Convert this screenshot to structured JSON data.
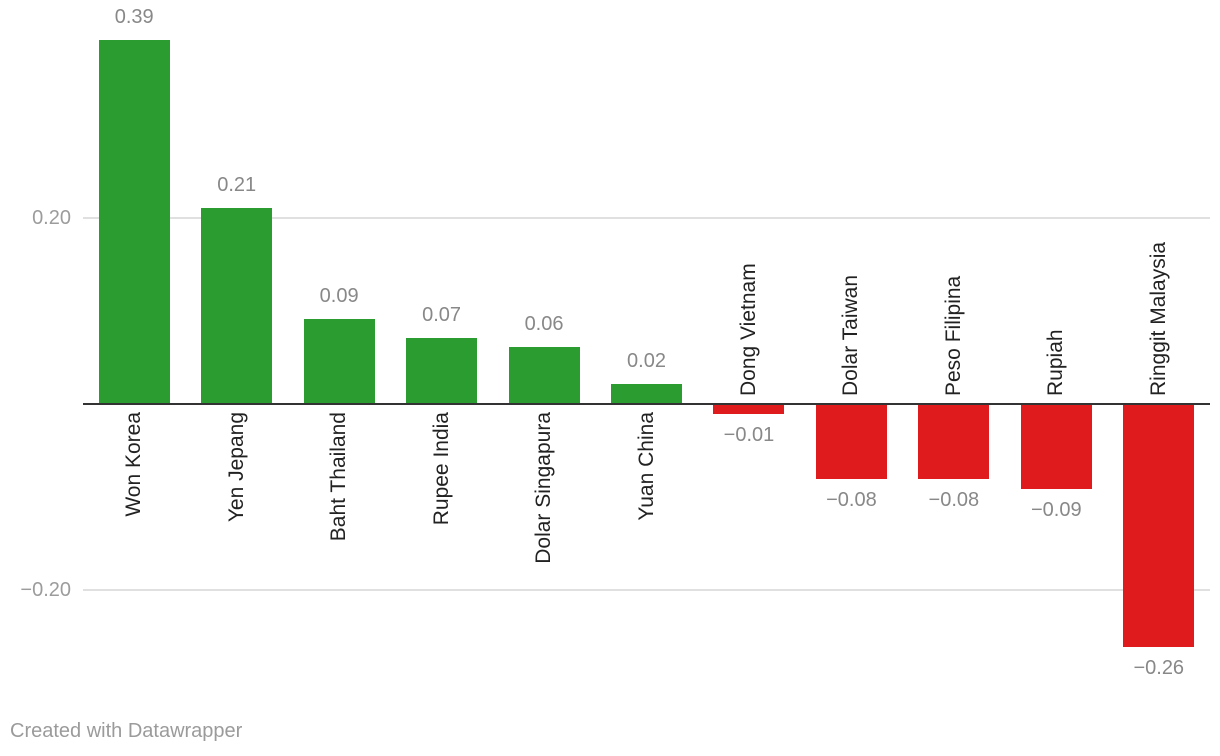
{
  "chart_data": {
    "type": "bar",
    "categories": [
      "Won Korea",
      "Yen Jepang",
      "Baht Thailand",
      "Rupee India",
      "Dolar Singapura",
      "Yuan China",
      "Dong Vietnam",
      "Dolar Taiwan",
      "Peso Filipina",
      "Rupiah",
      "Ringgit Malaysia"
    ],
    "values": [
      0.39,
      0.21,
      0.09,
      0.07,
      0.06,
      0.02,
      -0.01,
      -0.08,
      -0.08,
      -0.09,
      -0.26
    ],
    "value_labels": [
      "0.39",
      "0.21",
      "0.09",
      "0.07",
      "0.06",
      "0.02",
      "−0.01",
      "−0.08",
      "−0.08",
      "−0.09",
      "−0.26"
    ],
    "yticks": [
      {
        "value": 0.2,
        "label": "0.20"
      },
      {
        "value": -0.2,
        "label": "−0.20"
      }
    ],
    "ylim": [
      -0.3,
      0.43
    ],
    "grid": true,
    "legend_position": "none",
    "title": "",
    "xlabel": "",
    "ylabel": "",
    "positive_color": "#2a9c30",
    "negative_color": "#e01b1e",
    "axis_color": "#333333",
    "grid_color": "#e0e0e0",
    "background_color": "#ffffff",
    "footer": "Created with Datawrapper"
  }
}
